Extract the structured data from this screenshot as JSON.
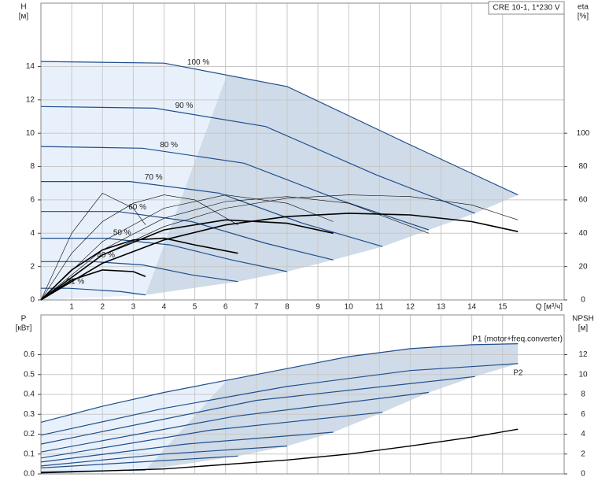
{
  "chart_data": [
    {
      "type": "line",
      "title": "CRE 10-1, 1*230 V",
      "ylabel": "H",
      "yunit": "[м]",
      "y2label": "eta",
      "y2unit": "[%]",
      "xlabel": "Q [м³/ч]",
      "xlim": [
        0,
        17
      ],
      "xticks": [
        1,
        2,
        3,
        4,
        5,
        6,
        7,
        8,
        9,
        10,
        11,
        12,
        13,
        14,
        15
      ],
      "ylim": [
        0,
        17.8
      ],
      "yticks": [
        0,
        2,
        4,
        6,
        8,
        10,
        12,
        14
      ],
      "y2lim": [
        0,
        178
      ],
      "y2ticks": [
        0,
        20,
        40,
        60,
        80,
        100
      ],
      "grid": true,
      "series": [
        {
          "name": "100 %",
          "color": "#1f4e8c",
          "x": [
            0,
            4,
            8,
            12,
            15.5
          ],
          "values": [
            14.3,
            14.2,
            12.8,
            9.3,
            6.3
          ]
        },
        {
          "name": "90 %",
          "color": "#1f4e8c",
          "x": [
            0,
            3.7,
            7.3,
            10.9,
            14.1
          ],
          "values": [
            11.6,
            11.5,
            10.4,
            7.5,
            5.2
          ]
        },
        {
          "name": "80 %",
          "color": "#1f4e8c",
          "x": [
            0,
            3.3,
            6.6,
            9.7,
            12.6
          ],
          "values": [
            9.2,
            9.1,
            8.2,
            6.0,
            4.2
          ]
        },
        {
          "name": "70 %",
          "color": "#1f4e8c",
          "x": [
            0,
            2.9,
            5.8,
            8.5,
            11.1
          ],
          "values": [
            7.1,
            7.1,
            6.4,
            4.6,
            3.2
          ]
        },
        {
          "name": "60 %",
          "color": "#1f4e8c",
          "x": [
            0,
            2.5,
            4.9,
            7.3,
            9.5
          ],
          "values": [
            5.3,
            5.3,
            4.7,
            3.4,
            2.4
          ]
        },
        {
          "name": "50 %",
          "color": "#1f4e8c",
          "x": [
            0,
            2.1,
            4.2,
            6.2,
            8.0
          ],
          "values": [
            3.7,
            3.7,
            3.3,
            2.4,
            1.7
          ]
        },
        {
          "name": "40 %",
          "color": "#1f4e8c",
          "x": [
            0,
            1.7,
            3.3,
            4.9,
            6.4
          ],
          "values": [
            2.3,
            2.3,
            2.1,
            1.5,
            1.1
          ]
        },
        {
          "name": "21 %",
          "color": "#1f4e8c",
          "x": [
            0,
            0.9,
            1.8,
            2.6,
            3.4
          ],
          "values": [
            0.7,
            0.7,
            0.6,
            0.5,
            0.3
          ]
        },
        {
          "axis": "y2",
          "color": "#000000",
          "width": 1.6,
          "x": [
            0,
            2,
            4,
            6,
            8,
            10,
            12,
            14,
            15.5
          ],
          "values": [
            0,
            22,
            36,
            45,
            50,
            52,
            51,
            47,
            41
          ]
        },
        {
          "axis": "y2",
          "color": "#000000",
          "width": 0.6,
          "x": [
            0,
            2,
            4,
            6,
            8,
            10,
            12,
            14,
            15.5
          ],
          "values": [
            0,
            27,
            44,
            55,
            61,
            63,
            62,
            57,
            48
          ]
        },
        {
          "axis": "y2",
          "color": "#000000",
          "width": 0.6,
          "x": [
            0,
            2,
            4,
            6,
            8,
            10,
            12.6
          ],
          "values": [
            0,
            30,
            49,
            59,
            62,
            58,
            40
          ]
        },
        {
          "axis": "y2",
          "color": "#000000",
          "width": 0.6,
          "x": [
            0,
            2,
            4,
            6,
            8,
            9.5
          ],
          "values": [
            0,
            35,
            55,
            63,
            58,
            47
          ]
        },
        {
          "axis": "y2",
          "color": "#000000",
          "width": 0.6,
          "x": [
            0,
            1,
            2,
            3,
            4,
            5,
            6.4
          ],
          "values": [
            0,
            28,
            47,
            58,
            63,
            60,
            45
          ]
        },
        {
          "axis": "y2",
          "color": "#000000",
          "width": 0.6,
          "x": [
            0,
            1,
            2,
            3,
            3.4
          ],
          "values": [
            0,
            40,
            64,
            55,
            45
          ]
        },
        {
          "axis": "y2",
          "color": "#000000",
          "width": 1.6,
          "x": [
            0,
            2,
            4,
            6,
            8,
            9.5
          ],
          "values": [
            0,
            27,
            42,
            48,
            46,
            40
          ]
        },
        {
          "axis": "y2",
          "color": "#000000",
          "width": 1.6,
          "x": [
            0,
            1,
            2,
            3,
            4,
            5,
            6.4
          ],
          "values": [
            0,
            18,
            30,
            36,
            37,
            33,
            28
          ]
        },
        {
          "axis": "y2",
          "color": "#000000",
          "width": 1.6,
          "x": [
            0,
            1,
            2,
            3,
            3.4
          ],
          "values": [
            0,
            12,
            18,
            17,
            14
          ]
        }
      ]
    },
    {
      "type": "line",
      "ylabel": "P",
      "yunit": "[кВт]",
      "y2label": "NPSH",
      "y2unit": "[м]",
      "xlim": [
        0,
        17
      ],
      "ylim": [
        0,
        0.8
      ],
      "yticks": [
        {
          "value": 0,
          "label": "0.0"
        },
        0.1,
        0.2,
        0.3,
        0.4,
        0.5,
        0.6
      ],
      "y2lim": [
        0,
        16
      ],
      "y2ticks": [
        0,
        2,
        4,
        6,
        8,
        10,
        12
      ],
      "grid": true,
      "series": [
        {
          "name": "P1 (motor+freq.converter)",
          "color": "#1f4e8c",
          "x": [
            0,
            2,
            4,
            6,
            8,
            10,
            12,
            14,
            15.5
          ],
          "values": [
            0.26,
            0.34,
            0.41,
            0.47,
            0.53,
            0.59,
            0.63,
            0.65,
            0.655
          ]
        },
        {
          "name": "P2",
          "color": "#1f4e8c",
          "x": [
            0,
            4,
            8,
            12,
            15.5
          ],
          "values": [
            0.195,
            0.33,
            0.44,
            0.52,
            0.555
          ]
        },
        {
          "color": "#1f4e8c",
          "x": [
            0,
            7,
            14.1
          ],
          "values": [
            0.15,
            0.37,
            0.49
          ]
        },
        {
          "color": "#1f4e8c",
          "x": [
            0,
            6.3,
            12.6
          ],
          "values": [
            0.11,
            0.29,
            0.41
          ]
        },
        {
          "color": "#1f4e8c",
          "x": [
            0,
            5.5,
            11.1
          ],
          "values": [
            0.08,
            0.22,
            0.31
          ]
        },
        {
          "color": "#1f4e8c",
          "x": [
            0,
            4.7,
            9.5
          ],
          "values": [
            0.06,
            0.15,
            0.21
          ]
        },
        {
          "color": "#1f4e8c",
          "x": [
            0,
            4,
            8
          ],
          "values": [
            0.04,
            0.1,
            0.14
          ]
        },
        {
          "color": "#1f4e8c",
          "x": [
            0,
            3.2,
            6.4
          ],
          "values": [
            0.03,
            0.06,
            0.09
          ]
        },
        {
          "color": "#1f4e8c",
          "x": [
            0,
            1.7,
            3.4
          ],
          "values": [
            0.01,
            0.015,
            0.02
          ]
        },
        {
          "axis": "y2",
          "color": "#000000",
          "width": 1.4,
          "x": [
            0,
            4,
            8,
            10,
            12,
            14,
            15.5
          ],
          "values": [
            0.1,
            0.5,
            1.4,
            2.0,
            2.8,
            3.7,
            4.5
          ]
        }
      ]
    }
  ]
}
